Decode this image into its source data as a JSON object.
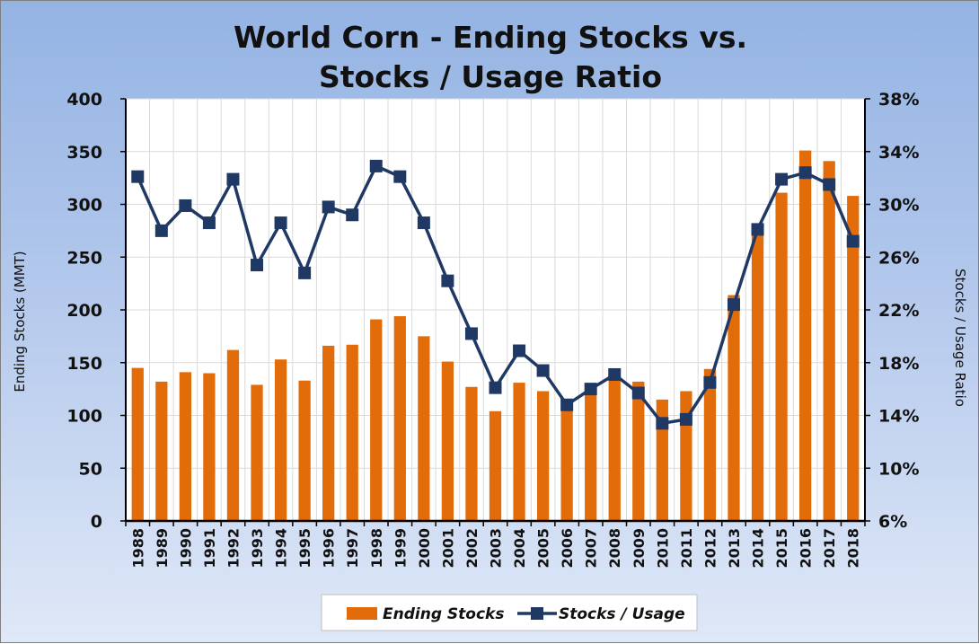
{
  "chart_data": {
    "type": "bar+line",
    "title_lines": [
      "World Corn - Ending Stocks vs.",
      "Stocks / Usage Ratio"
    ],
    "ylabel_left": "Ending Stocks (MMT)",
    "ylabel_right": "Stocks / Usage Ratio",
    "y_left_range": [
      0,
      400
    ],
    "y_left_ticks": [
      "0",
      "50",
      "100",
      "150",
      "200",
      "250",
      "300",
      "350",
      "400"
    ],
    "y_right_range": [
      6,
      38
    ],
    "y_right_ticks": [
      "6%",
      "10%",
      "14%",
      "18%",
      "22%",
      "26%",
      "30%",
      "34%",
      "38%"
    ],
    "grid": true,
    "legend_position": "bottom",
    "categories": [
      "1988",
      "1989",
      "1990",
      "1991",
      "1992",
      "1993",
      "1994",
      "1995",
      "1996",
      "1997",
      "1998",
      "1999",
      "2000",
      "2001",
      "2002",
      "2003",
      "2004",
      "2005",
      "2006",
      "2007",
      "2008",
      "2009",
      "2010",
      "2011",
      "2012",
      "2013",
      "2014",
      "2015",
      "2016",
      "2017",
      "2018"
    ],
    "series": [
      {
        "name": "Ending Stocks",
        "kind": "bar",
        "axis": "left",
        "color": "#e36c0a",
        "values": [
          145,
          132,
          141,
          140,
          162,
          129,
          153,
          133,
          166,
          167,
          191,
          194,
          175,
          151,
          127,
          104,
          131,
          123,
          109,
          125,
          140,
          132,
          115,
          123,
          144,
          214,
          277,
          311,
          351,
          341,
          308
        ]
      },
      {
        "name": "Stocks / Usage",
        "kind": "line",
        "axis": "right",
        "color": "#1f3864",
        "values": [
          32.1,
          28.0,
          29.9,
          28.6,
          31.9,
          25.4,
          28.6,
          24.8,
          29.8,
          29.2,
          32.9,
          32.1,
          28.6,
          24.2,
          20.2,
          16.1,
          18.9,
          17.4,
          14.8,
          16.0,
          17.1,
          15.7,
          13.4,
          13.7,
          16.5,
          22.4,
          28.1,
          31.9,
          32.4,
          31.5,
          27.2
        ]
      }
    ]
  }
}
